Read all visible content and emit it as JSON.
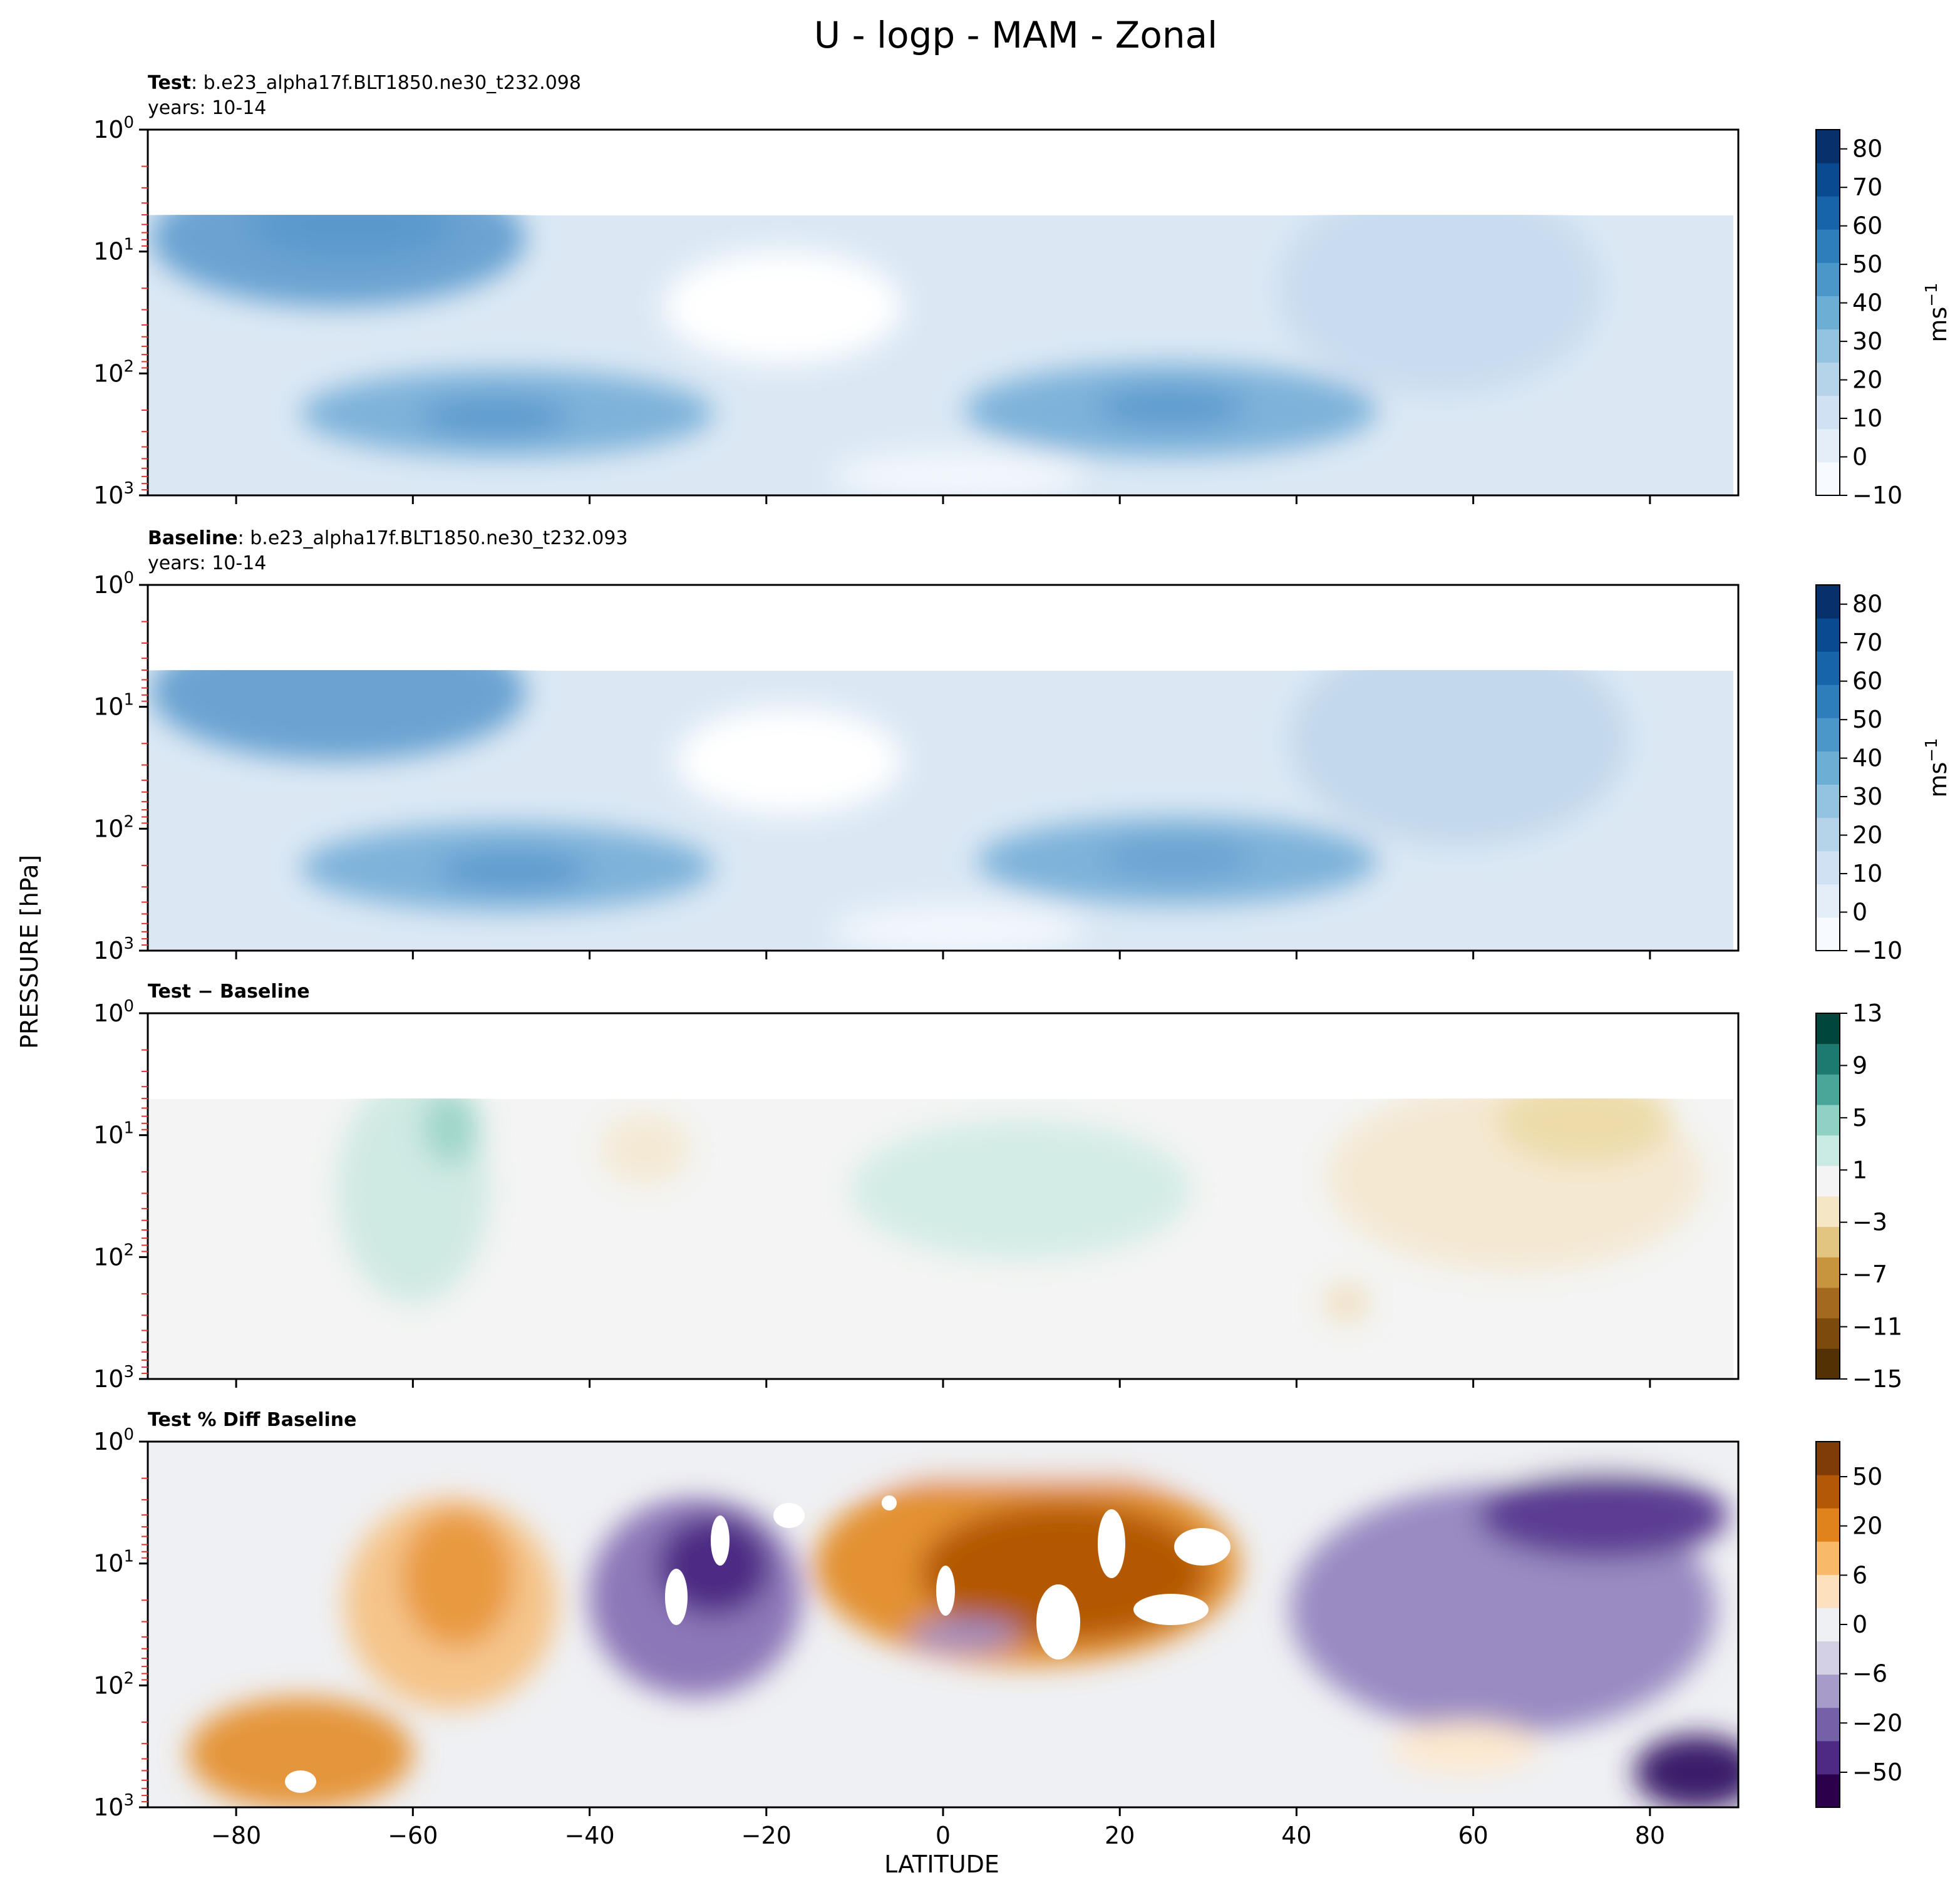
{
  "figure": {
    "title": "U - logp - MAM - Zonal",
    "xlabel": "LATITUDE",
    "ylabel": "PRESSURE [hPa]"
  },
  "chart_data": [
    {
      "type": "heatmap",
      "title_bold": "Test",
      "title_rest": ": b.e23_alpha17f.BLT1850.ne30_t232.098",
      "subtitle": "years: 10-14",
      "x": [
        -90,
        90
      ],
      "xticks": [
        -80,
        -60,
        -40,
        -20,
        0,
        20,
        40,
        60,
        80
      ],
      "ylim_hPa": [
        1,
        1000
      ],
      "yscale": "log",
      "yticks": [
        "10^0",
        "10^1",
        "10^2",
        "10^3"
      ],
      "data_top_hPa": 5,
      "colorbar": {
        "label": "ms^-1",
        "range": [
          -10,
          85
        ],
        "ticks": [
          -10,
          0,
          10,
          20,
          30,
          40,
          50,
          60,
          70,
          80
        ],
        "cmap": "Blues"
      },
      "features": [
        {
          "lat": -60,
          "p_hPa": 6,
          "value": 40
        },
        {
          "lat": -50,
          "p_hPa": 200,
          "value": 35
        },
        {
          "lat": 27,
          "p_hPa": 200,
          "value": 37
        },
        {
          "lat": -17,
          "p_hPa": 30,
          "value": -8
        },
        {
          "lat": 2,
          "p_hPa": 40,
          "value": 10
        },
        {
          "lat": 60,
          "p_hPa": 20,
          "value": 14
        }
      ]
    },
    {
      "type": "heatmap",
      "title_bold": "Baseline",
      "title_rest": ": b.e23_alpha17f.BLT1850.ne30_t232.093",
      "subtitle": "years: 10-14",
      "x": [
        -90,
        90
      ],
      "xticks": [
        -80,
        -60,
        -40,
        -20,
        0,
        20,
        40,
        60,
        80
      ],
      "ylim_hPa": [
        1,
        1000
      ],
      "yscale": "log",
      "yticks": [
        "10^0",
        "10^1",
        "10^2",
        "10^3"
      ],
      "data_top_hPa": 5,
      "colorbar": {
        "label": "ms^-1",
        "range": [
          -10,
          85
        ],
        "ticks": [
          -10,
          0,
          10,
          20,
          30,
          40,
          50,
          60,
          70,
          80
        ],
        "cmap": "Blues"
      },
      "features": [
        {
          "lat": -60,
          "p_hPa": 6,
          "value": 38
        },
        {
          "lat": -50,
          "p_hPa": 200,
          "value": 34
        },
        {
          "lat": 27,
          "p_hPa": 200,
          "value": 34
        },
        {
          "lat": -15,
          "p_hPa": 30,
          "value": -8
        },
        {
          "lat": 2,
          "p_hPa": 40,
          "value": 8
        },
        {
          "lat": 60,
          "p_hPa": 20,
          "value": 16
        }
      ]
    },
    {
      "type": "heatmap",
      "title_bold": "Test − Baseline",
      "title_rest": "",
      "subtitle": "",
      "x": [
        -90,
        90
      ],
      "xticks": [
        -80,
        -60,
        -40,
        -20,
        0,
        20,
        40,
        60,
        80
      ],
      "ylim_hPa": [
        1,
        1000
      ],
      "yscale": "log",
      "yticks": [
        "10^0",
        "10^1",
        "10^2",
        "10^3"
      ],
      "data_top_hPa": 5,
      "colorbar": {
        "label": "",
        "range": [
          -15,
          13
        ],
        "ticks": [
          -15,
          -11,
          -7,
          -3,
          1,
          5,
          9,
          13
        ],
        "cmap": "BrBG"
      },
      "features": [
        {
          "lat": -55,
          "p_hPa": 8,
          "value": 4
        },
        {
          "lat": -65,
          "p_hPa": 150,
          "value": 2
        },
        {
          "lat": 10,
          "p_hPa": 20,
          "value": 2
        },
        {
          "lat": -35,
          "p_hPa": 15,
          "value": -2
        },
        {
          "lat": 75,
          "p_hPa": 8,
          "value": -4
        },
        {
          "lat": 65,
          "p_hPa": 40,
          "value": -2
        },
        {
          "lat": 46,
          "p_hPa": 400,
          "value": -2
        }
      ]
    },
    {
      "type": "heatmap",
      "title_bold": "Test % Diff Baseline",
      "title_rest": "",
      "subtitle": "",
      "x": [
        -90,
        90
      ],
      "xticks": [
        -80,
        -60,
        -40,
        -20,
        0,
        20,
        40,
        60,
        80
      ],
      "ylim_hPa": [
        1,
        1000
      ],
      "yscale": "log",
      "yticks": [
        "10^0",
        "10^1",
        "10^2",
        "10^3"
      ],
      "data_top_hPa": 1,
      "colorbar": {
        "label": "",
        "range": [
          -100,
          100
        ],
        "ticks": [
          -50,
          -20,
          -6,
          0,
          6,
          20,
          50
        ],
        "cmap": "PuOr"
      },
      "features": [
        {
          "lat": -55,
          "p_hPa": 20,
          "value": 20
        },
        {
          "lat": -75,
          "p_hPa": 400,
          "value": 25
        },
        {
          "lat": -30,
          "p_hPa": 15,
          "value": -35
        },
        {
          "lat": 18,
          "p_hPa": 25,
          "value": 45
        },
        {
          "lat": 5,
          "p_hPa": 40,
          "value": -20
        },
        {
          "lat": 65,
          "p_hPa": 20,
          "value": -25
        },
        {
          "lat": 75,
          "p_hPa": 8,
          "value": -40
        },
        {
          "lat": 85,
          "p_hPa": 800,
          "value": -50
        }
      ]
    }
  ]
}
